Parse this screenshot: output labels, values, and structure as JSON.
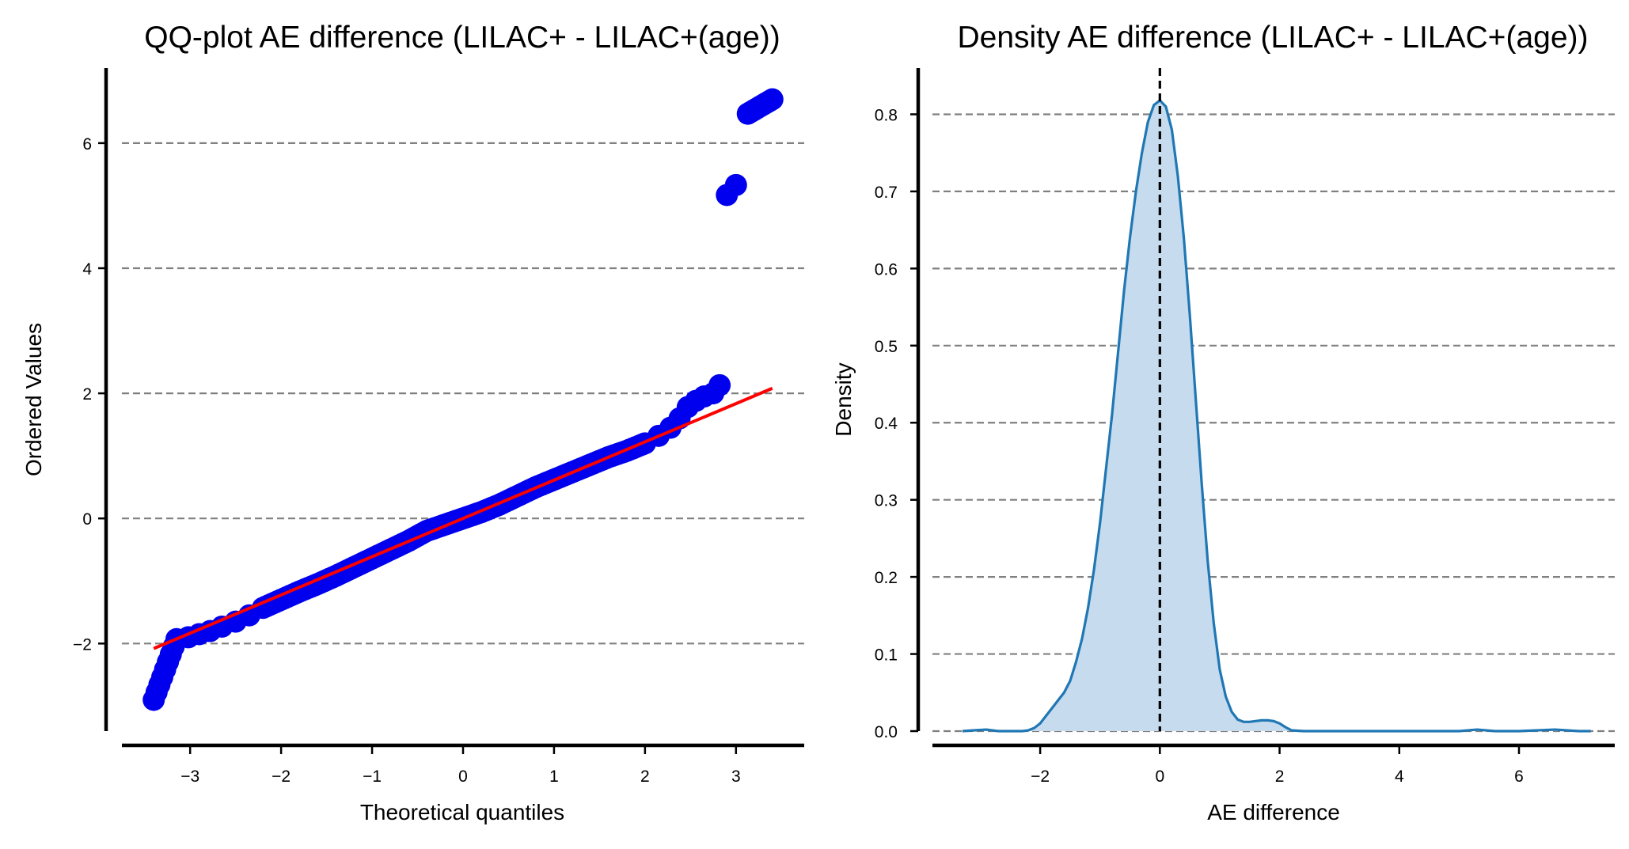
{
  "chart_data": [
    {
      "type": "scatter",
      "title": "QQ-plot AE difference (LILAC+ - LILAC+(age))",
      "xlabel": "Theoretical quantiles",
      "ylabel": "Ordered Values",
      "xlim": [
        -3.75,
        3.75
      ],
      "ylim": [
        -3.4,
        7.2
      ],
      "xticks": [
        -3,
        -2,
        -1,
        0,
        1,
        2,
        3
      ],
      "yticks": [
        -2,
        0,
        2,
        4,
        6
      ],
      "xtick_labels": [
        "−3",
        "−2",
        "−1",
        "0",
        "1",
        "2",
        "3"
      ],
      "ytick_labels": [
        "−2",
        "0",
        "2",
        "4",
        "6"
      ],
      "grid": "horizontal dashed",
      "point_color": "#0000ee",
      "line_color": "#ff0000",
      "fit_line": {
        "x": [
          -3.4,
          3.4
        ],
        "y": [
          -2.08,
          2.08
        ]
      },
      "series": [
        {
          "points": [
            [
              -3.4,
              -2.9
            ],
            [
              -3.15,
              -1.93
            ],
            [
              -3.02,
              -1.9
            ],
            [
              -2.9,
              -1.85
            ],
            [
              -2.78,
              -1.8
            ],
            [
              -2.65,
              -1.73
            ],
            [
              -2.5,
              -1.65
            ],
            [
              -2.35,
              -1.55
            ],
            [
              -2.2,
              -1.43
            ],
            [
              -2.0,
              -1.3
            ],
            [
              -1.8,
              -1.17
            ],
            [
              -1.6,
              -1.05
            ],
            [
              -1.4,
              -0.92
            ],
            [
              -1.2,
              -0.78
            ],
            [
              -1.0,
              -0.64
            ],
            [
              -0.8,
              -0.5
            ],
            [
              -0.6,
              -0.36
            ],
            [
              -0.4,
              -0.2
            ],
            [
              -0.2,
              -0.1
            ],
            [
              0.0,
              0.0
            ],
            [
              0.2,
              0.1
            ],
            [
              0.4,
              0.22
            ],
            [
              0.6,
              0.36
            ],
            [
              0.8,
              0.5
            ],
            [
              1.0,
              0.62
            ],
            [
              1.2,
              0.74
            ],
            [
              1.4,
              0.86
            ],
            [
              1.6,
              0.98
            ],
            [
              1.8,
              1.08
            ],
            [
              2.0,
              1.2
            ],
            [
              2.15,
              1.32
            ],
            [
              2.28,
              1.45
            ],
            [
              2.38,
              1.6
            ],
            [
              2.47,
              1.78
            ],
            [
              2.56,
              1.88
            ],
            [
              2.65,
              1.95
            ],
            [
              2.75,
              2.0
            ],
            [
              2.82,
              2.13
            ],
            [
              2.9,
              5.17
            ],
            [
              3.0,
              5.33
            ],
            [
              3.13,
              6.47
            ],
            [
              3.4,
              6.7
            ]
          ]
        }
      ]
    },
    {
      "type": "area",
      "title": "Density AE difference (LILAC+ - LILAC+(age))",
      "xlabel": "AE difference",
      "ylabel": "Density",
      "xlim": [
        -3.8,
        7.6
      ],
      "ylim": [
        0,
        0.86
      ],
      "xticks": [
        -2,
        0,
        2,
        4,
        6
      ],
      "yticks": [
        0.0,
        0.1,
        0.2,
        0.3,
        0.4,
        0.5,
        0.6,
        0.7,
        0.8
      ],
      "xtick_labels": [
        "−2",
        "0",
        "2",
        "4",
        "6"
      ],
      "ytick_labels": [
        "0.0",
        "0.1",
        "0.2",
        "0.3",
        "0.4",
        "0.5",
        "0.6",
        "0.7",
        "0.8"
      ],
      "grid": "horizontal dashed",
      "vline_x": 0,
      "line_color": "#1f77b4",
      "fill_color": "#c6dbed",
      "x": [
        -3.3,
        -3.1,
        -2.9,
        -2.7,
        -2.5,
        -2.3,
        -2.2,
        -2.1,
        -2.0,
        -1.9,
        -1.8,
        -1.7,
        -1.6,
        -1.5,
        -1.4,
        -1.3,
        -1.2,
        -1.1,
        -1.0,
        -0.9,
        -0.8,
        -0.7,
        -0.6,
        -0.5,
        -0.4,
        -0.3,
        -0.2,
        -0.1,
        0.0,
        0.1,
        0.2,
        0.3,
        0.4,
        0.5,
        0.6,
        0.7,
        0.8,
        0.9,
        1.0,
        1.1,
        1.2,
        1.3,
        1.4,
        1.5,
        1.6,
        1.7,
        1.8,
        1.9,
        2.0,
        2.1,
        2.2,
        2.4,
        3.0,
        4.0,
        5.0,
        5.3,
        5.6,
        6.0,
        6.6,
        7.0,
        7.2
      ],
      "y": [
        0.0,
        0.001,
        0.002,
        0.0,
        0.0,
        0.0,
        0.001,
        0.004,
        0.01,
        0.02,
        0.03,
        0.04,
        0.05,
        0.065,
        0.09,
        0.12,
        0.16,
        0.21,
        0.27,
        0.34,
        0.41,
        0.49,
        0.57,
        0.64,
        0.7,
        0.75,
        0.79,
        0.812,
        0.818,
        0.81,
        0.78,
        0.72,
        0.64,
        0.54,
        0.43,
        0.32,
        0.22,
        0.14,
        0.08,
        0.045,
        0.025,
        0.015,
        0.012,
        0.012,
        0.013,
        0.014,
        0.014,
        0.013,
        0.01,
        0.005,
        0.001,
        0.0,
        0.0,
        0.0,
        0.0,
        0.002,
        0.0,
        0.0,
        0.002,
        0.0,
        0.0
      ]
    }
  ]
}
